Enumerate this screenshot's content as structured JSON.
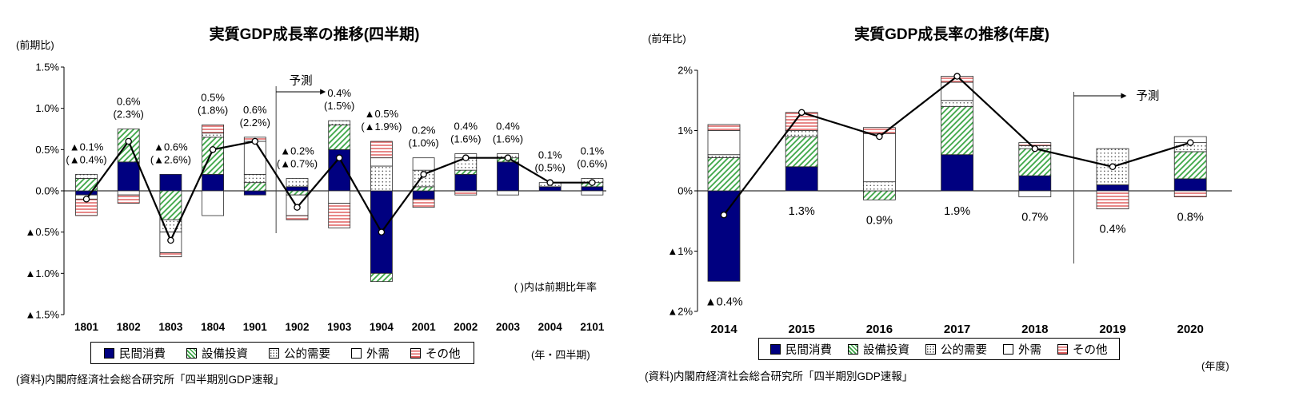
{
  "colors": {
    "navy": "#000080",
    "green": "#3AA544",
    "red": "#E06060",
    "dot": "#555555",
    "line": "#000000"
  },
  "legend": {
    "items": [
      {
        "label": "民間消費",
        "style": "navy"
      },
      {
        "label": "設備投資",
        "style": "green_hatch"
      },
      {
        "label": "公的需要",
        "style": "dots"
      },
      {
        "label": "外需",
        "style": "white"
      },
      {
        "label": "その他",
        "style": "red_hatch"
      }
    ]
  },
  "chart_data": [
    {
      "type": "bar",
      "subtype": "stacked-bar-with-line",
      "title": "実質GDP成長率の推移(四半期)",
      "y_axis_label": "(前期比)",
      "x_axis_label": "(年・四半期)",
      "source": "(資料)内閣府経済社会総合研究所「四半期別GDP速報」",
      "note": "( )内は前期比年率",
      "forecast_label": "予測",
      "forecast_start_category": "1902",
      "ylim": [
        -1.5,
        1.5
      ],
      "y_ticks": [
        "1.5%",
        "1.0%",
        "0.5%",
        "0.0%",
        "▲0.5%",
        "▲1.0%",
        "▲1.5%"
      ],
      "categories": [
        "1801",
        "1802",
        "1803",
        "1804",
        "1901",
        "1902",
        "1903",
        "1904",
        "2001",
        "2002",
        "2003",
        "2004",
        "2101"
      ],
      "series": [
        {
          "name": "民間消費",
          "style": "navy",
          "values": [
            -0.05,
            0.35,
            0.2,
            0.2,
            -0.05,
            0.05,
            0.5,
            -1.0,
            -0.1,
            0.2,
            0.35,
            0.05,
            0.05
          ]
        },
        {
          "name": "設備投資",
          "style": "green_hatch",
          "values": [
            0.15,
            0.4,
            -0.35,
            0.45,
            0.1,
            -0.05,
            0.3,
            -0.1,
            0.05,
            0.05,
            0.05,
            0.0,
            0.05
          ]
        },
        {
          "name": "公的需要",
          "style": "dots",
          "values": [
            0.05,
            0.0,
            -0.15,
            0.05,
            0.1,
            0.1,
            0.05,
            0.3,
            0.2,
            0.15,
            0.05,
            0.05,
            0.05
          ]
        },
        {
          "name": "外需",
          "style": "white",
          "values": [
            -0.05,
            -0.05,
            -0.25,
            -0.3,
            0.4,
            -0.25,
            -0.15,
            0.1,
            0.15,
            0.05,
            -0.05,
            0.0,
            -0.05
          ]
        },
        {
          "name": "その他",
          "style": "red_hatch",
          "values": [
            -0.2,
            -0.1,
            -0.05,
            0.1,
            0.05,
            -0.05,
            -0.3,
            0.2,
            -0.1,
            -0.05,
            0.0,
            0.0,
            0.0
          ]
        }
      ],
      "line": {
        "values": [
          -0.1,
          0.6,
          -0.6,
          0.5,
          0.6,
          -0.2,
          0.4,
          -0.5,
          0.2,
          0.4,
          0.4,
          0.1,
          0.1
        ]
      },
      "point_labels": [
        [
          "▲0.1%",
          "(▲0.4%)"
        ],
        [
          "0.6%",
          "(2.3%)"
        ],
        [
          "▲0.6%",
          "(▲2.6%)"
        ],
        [
          "0.5%",
          "(1.8%)"
        ],
        [
          "0.6%",
          "(2.2%)"
        ],
        [
          "▲0.2%",
          "(▲0.7%)"
        ],
        [
          "0.4%",
          "(1.5%)"
        ],
        [
          "▲0.5%",
          "(▲1.9%)"
        ],
        [
          "0.2%",
          "(1.0%)"
        ],
        [
          "0.4%",
          "(1.6%)"
        ],
        [
          "0.4%",
          "(1.6%)"
        ],
        [
          "0.1%",
          "(0.5%)"
        ],
        [
          "0.1%",
          "(0.6%)"
        ]
      ]
    },
    {
      "type": "bar",
      "subtype": "stacked-bar-with-line",
      "title": "実質GDP成長率の推移(年度)",
      "y_axis_label": "(前年比)",
      "x_axis_label": "(年度)",
      "source": "(資料)内閣府経済社会総合研究所「四半期別GDP速報」",
      "forecast_label": "予測",
      "forecast_start_category": "2019",
      "ylim": [
        -2,
        2
      ],
      "y_ticks": [
        "2%",
        "1%",
        "0%",
        "▲1%",
        "▲2%"
      ],
      "categories": [
        "2014",
        "2015",
        "2016",
        "2017",
        "2018",
        "2019",
        "2020"
      ],
      "series": [
        {
          "name": "民間消費",
          "style": "navy",
          "values": [
            -1.5,
            0.4,
            0.0,
            0.6,
            0.25,
            0.1,
            0.2
          ]
        },
        {
          "name": "設備投資",
          "style": "green_hatch",
          "values": [
            0.55,
            0.5,
            -0.15,
            0.8,
            0.45,
            0.0,
            0.45
          ]
        },
        {
          "name": "公的需要",
          "style": "dots",
          "values": [
            0.05,
            0.1,
            0.15,
            0.1,
            0.05,
            0.6,
            0.15
          ]
        },
        {
          "name": "外需",
          "style": "white",
          "values": [
            0.4,
            0.0,
            0.8,
            0.3,
            -0.1,
            0.0,
            0.1
          ]
        },
        {
          "name": "その他",
          "style": "red_hatch",
          "values": [
            0.1,
            0.3,
            0.1,
            0.1,
            0.05,
            -0.3,
            -0.1
          ]
        }
      ],
      "line": {
        "values": [
          -0.4,
          1.3,
          0.9,
          1.9,
          0.7,
          0.4,
          0.8
        ]
      },
      "point_labels": [
        "▲0.4%",
        "1.3%",
        "0.9%",
        "1.9%",
        "0.7%",
        "0.4%",
        "0.8%"
      ]
    }
  ]
}
